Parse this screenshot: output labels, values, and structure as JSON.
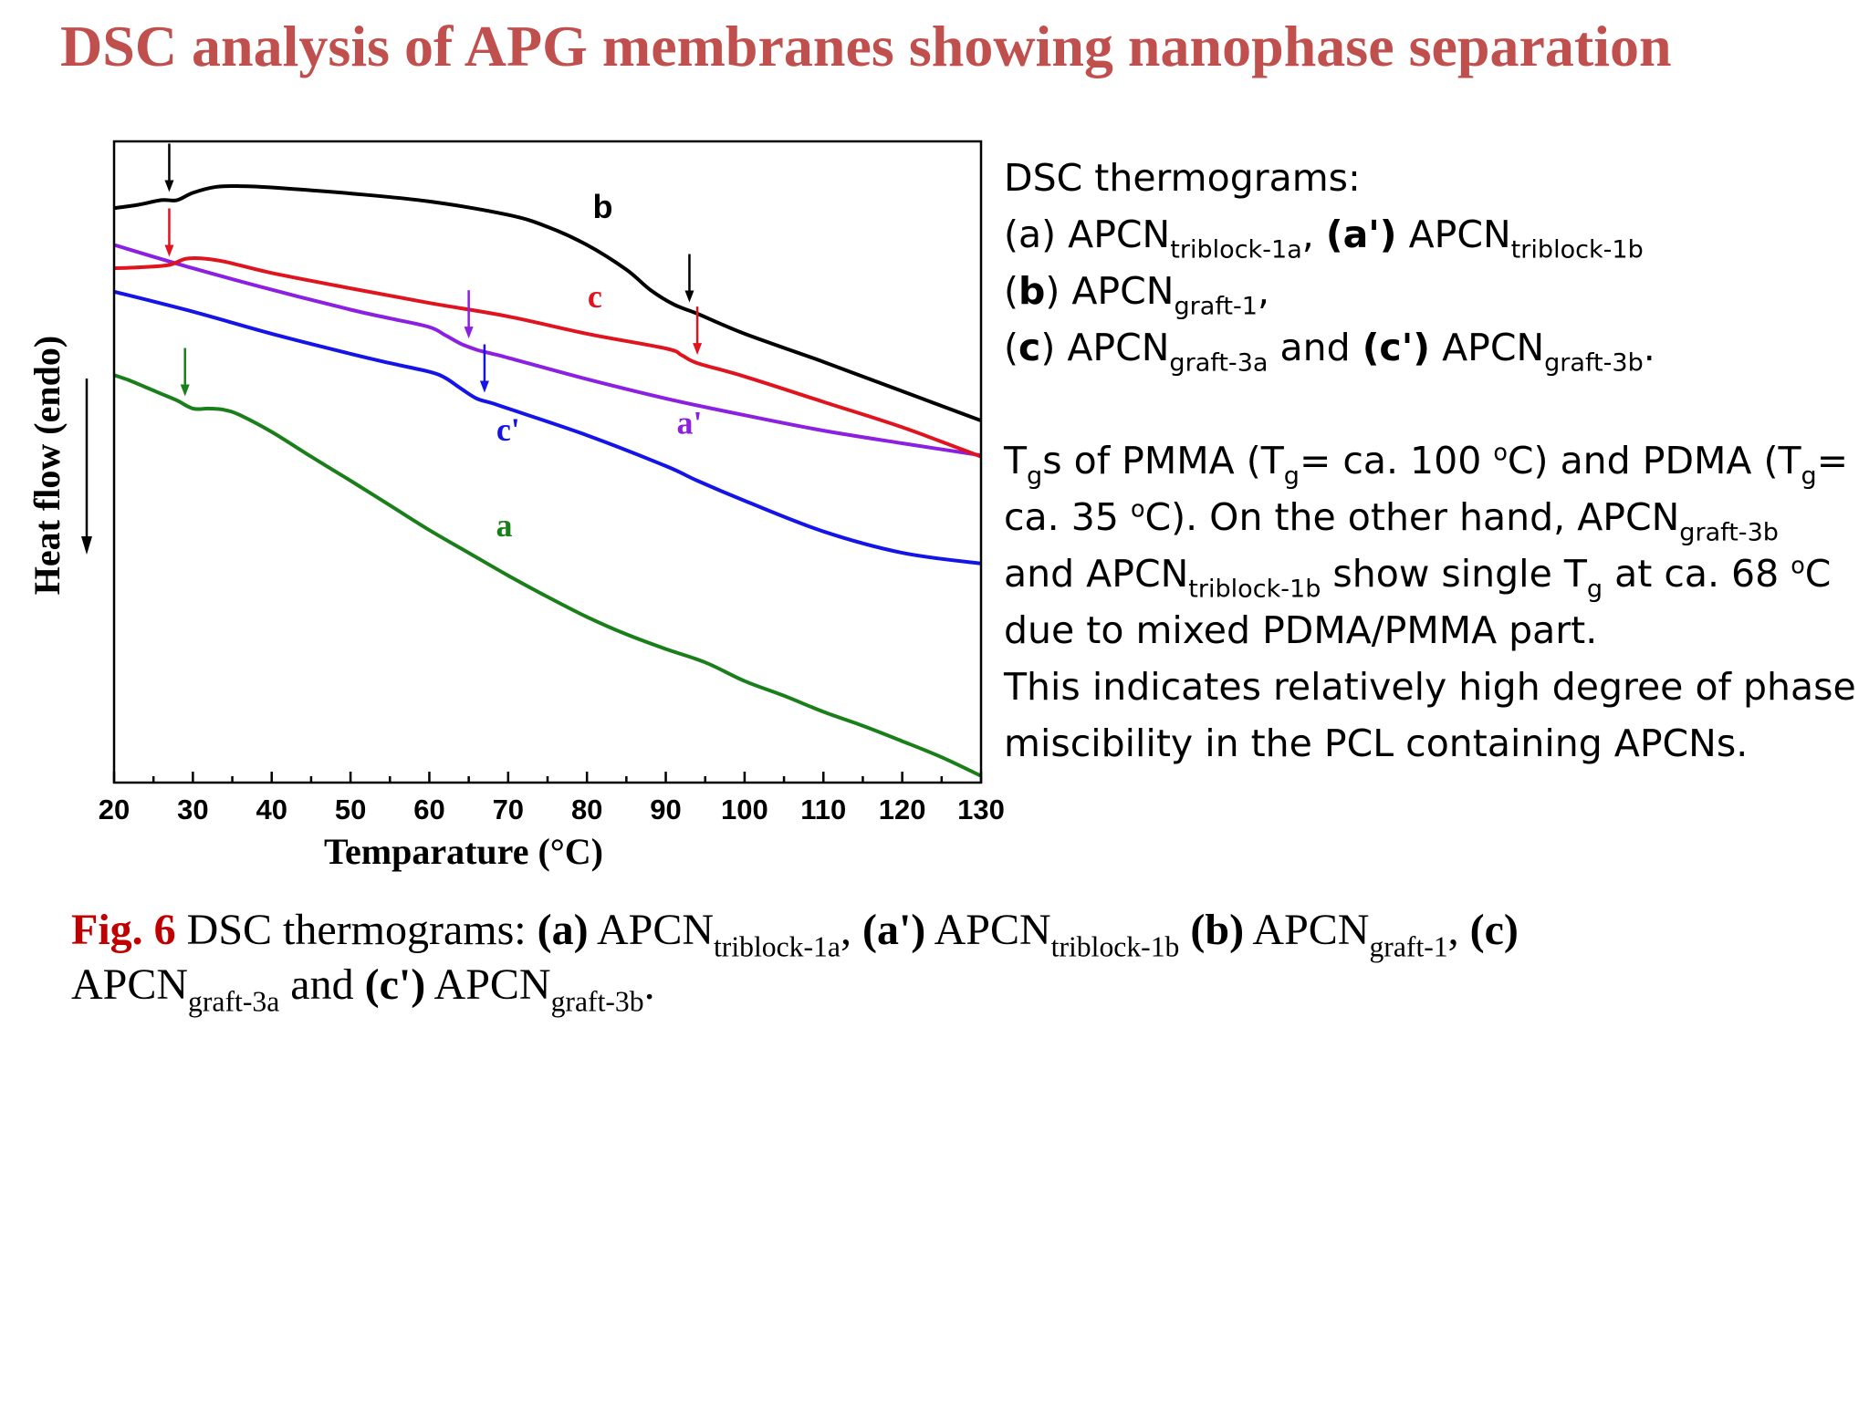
{
  "title": "DSC analysis of APG membranes showing nanophase separation",
  "chart_data": {
    "type": "line",
    "xlabel": "Temparature (°C)",
    "ylabel": "Heat flow (endo)",
    "xlim": [
      20,
      130
    ],
    "xticks": [
      "20",
      "30",
      "40",
      "50",
      "60",
      "70",
      "80",
      "90",
      "100",
      "110",
      "120",
      "130"
    ],
    "y_scale": "arbitrary heat flow units (no tick labels)",
    "grid": false,
    "colors": {
      "a": "#1a7f1a",
      "a'": "#8b20e0",
      "b": "#000000",
      "c": "#e0141e",
      "c'": "#1414e6"
    },
    "series": [
      {
        "name": "a",
        "color": "#1a7f1a",
        "x": [
          20,
          22,
          24,
          26,
          28,
          30,
          32,
          34,
          36,
          40,
          45,
          50,
          55,
          60,
          65,
          70,
          75,
          80,
          85,
          90,
          95,
          100,
          105,
          110,
          115,
          120,
          125,
          130
        ],
        "y": [
          5.5,
          5.42,
          5.32,
          5.22,
          5.12,
          5.0,
          5.0,
          4.98,
          4.9,
          4.65,
          4.28,
          3.92,
          3.55,
          3.18,
          2.84,
          2.5,
          2.18,
          1.88,
          1.62,
          1.4,
          1.2,
          0.92,
          0.7,
          0.46,
          0.25,
          0.02,
          -0.22,
          -0.5
        ],
        "tg_arrow": 29
      },
      {
        "name": "a'",
        "color": "#8b20e0",
        "x": [
          20,
          30,
          40,
          50,
          55,
          60,
          62,
          64,
          66,
          68,
          70,
          80,
          90,
          100,
          110,
          120,
          130
        ],
        "y": [
          7.45,
          7.1,
          6.78,
          6.48,
          6.35,
          6.22,
          6.1,
          5.97,
          5.88,
          5.82,
          5.76,
          5.44,
          5.15,
          4.9,
          4.67,
          4.48,
          4.3
        ],
        "tg_arrow": 65
      },
      {
        "name": "b",
        "color": "#000000",
        "x": [
          20,
          23,
          26,
          28,
          30,
          33,
          36,
          40,
          50,
          60,
          70,
          75,
          80,
          85,
          88,
          91,
          94,
          100,
          110,
          120,
          130
        ],
        "y": [
          8.0,
          8.05,
          8.12,
          8.12,
          8.23,
          8.32,
          8.33,
          8.31,
          8.22,
          8.1,
          7.9,
          7.72,
          7.45,
          7.08,
          6.78,
          6.56,
          6.42,
          6.12,
          5.7,
          5.26,
          4.82
        ],
        "tg_arrow": 27
      },
      {
        "name": "c",
        "color": "#e0141e",
        "x": [
          20,
          24,
          27,
          29,
          31,
          34,
          40,
          50,
          60,
          70,
          80,
          90,
          92,
          94,
          100,
          110,
          120,
          130
        ],
        "y": [
          7.1,
          7.12,
          7.15,
          7.24,
          7.25,
          7.2,
          7.03,
          6.8,
          6.58,
          6.38,
          6.12,
          5.9,
          5.8,
          5.68,
          5.48,
          5.1,
          4.72,
          4.28
        ],
        "tg_arrow": 27
      },
      {
        "name": "c'",
        "color": "#1414e6",
        "x": [
          20,
          30,
          40,
          50,
          55,
          60,
          62,
          64,
          66,
          68,
          70,
          80,
          90,
          94,
          100,
          110,
          120,
          130
        ],
        "y": [
          6.75,
          6.45,
          6.12,
          5.82,
          5.68,
          5.55,
          5.46,
          5.3,
          5.15,
          5.08,
          5.0,
          4.6,
          4.14,
          3.92,
          3.62,
          3.16,
          2.84,
          2.68
        ],
        "tg_arrow": 67
      }
    ],
    "extra_tg_arrows": [
      {
        "series": "b",
        "x": 93
      },
      {
        "series": "c",
        "x": 94
      }
    ]
  },
  "description": {
    "lines": [
      [
        {
          "t": "DSC thermograms:"
        }
      ],
      [
        {
          "t": "(a)  APCN"
        },
        {
          "t": "triblock-1a",
          "sub": true
        },
        {
          "t": ", "
        },
        {
          "t": "(a')",
          "b": true
        },
        {
          "t": " APCN"
        },
        {
          "t": "triblock-1b",
          "sub": true
        }
      ],
      [
        {
          "t": "("
        },
        {
          "t": "b",
          "b": true
        },
        {
          "t": ") APCN"
        },
        {
          "t": "graft-1",
          "sub": true
        },
        {
          "t": ","
        }
      ],
      [
        {
          "t": "("
        },
        {
          "t": "c",
          "b": true
        },
        {
          "t": ") APCN"
        },
        {
          "t": "graft-3a",
          "sub": true
        },
        {
          "t": " and  "
        },
        {
          "t": "(c')",
          "b": true
        },
        {
          "t": " APCN"
        },
        {
          "t": "graft-3b",
          "sub": true
        },
        {
          "t": "."
        }
      ],
      [],
      [
        {
          "t": "T"
        },
        {
          "t": "g",
          "sub": true
        },
        {
          "t": "s of PMMA (T"
        },
        {
          "t": "g",
          "sub": true
        },
        {
          "t": "= ca. 100 "
        },
        {
          "t": "o",
          "sup": true
        },
        {
          "t": "C) and PDMA (T"
        },
        {
          "t": "g",
          "sub": true
        },
        {
          "t": "="
        }
      ],
      [
        {
          "t": "ca. 35 "
        },
        {
          "t": "o",
          "sup": true
        },
        {
          "t": "C). On the other hand, APCN"
        },
        {
          "t": "graft-3b",
          "sub": true
        }
      ],
      [
        {
          "t": "and APCN"
        },
        {
          "t": "triblock-1b",
          "sub": true
        },
        {
          "t": " show single T"
        },
        {
          "t": "g",
          "sub": true
        },
        {
          "t": " at ca. 68 "
        },
        {
          "t": "o",
          "sup": true
        },
        {
          "t": "C"
        }
      ],
      [
        {
          "t": "due to mixed PDMA/PMMA part."
        }
      ],
      [
        {
          "t": "This indicates relatively high degree of phase"
        }
      ],
      [
        {
          "t": "miscibility in the PCL containing APCNs."
        }
      ]
    ]
  },
  "caption": {
    "lines": [
      [
        {
          "t": "Fig. 6",
          "red": true
        },
        {
          "t": " DSC thermograms: "
        },
        {
          "t": "(a)",
          "b": true
        },
        {
          "t": " APCN"
        },
        {
          "t": "triblock-1a",
          "sub": true
        },
        {
          "t": ", "
        },
        {
          "t": "(a')",
          "b": true
        },
        {
          "t": " APCN"
        },
        {
          "t": "triblock-1b",
          "sub": true
        },
        {
          "t": " "
        },
        {
          "t": "(b)",
          "b": true
        },
        {
          "t": " APCN"
        },
        {
          "t": "graft-1",
          "sub": true
        },
        {
          "t": ", "
        },
        {
          "t": "(c)",
          "b": true
        }
      ],
      [
        {
          "t": "APCN"
        },
        {
          "t": "graft-3a",
          "sub": true
        },
        {
          "t": " and "
        },
        {
          "t": "(c')",
          "b": true
        },
        {
          "t": " APCN"
        },
        {
          "t": "graft-3b",
          "sub": true
        },
        {
          "t": "."
        }
      ]
    ]
  }
}
